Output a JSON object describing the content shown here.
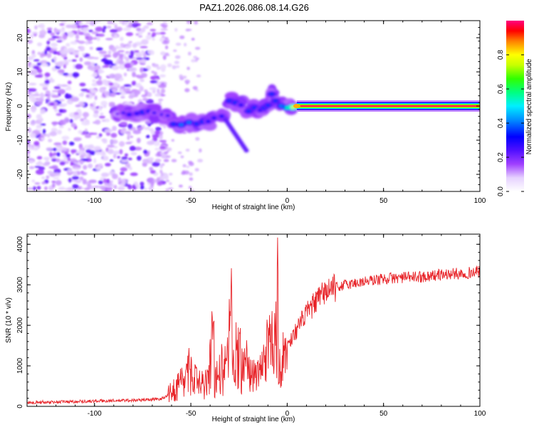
{
  "title": "PAZ1.2026.086.08.14.G26",
  "chart_data": [
    {
      "type": "heatmap",
      "name": "spectrogram",
      "xlabel": "Height of straight line (km)",
      "ylabel": "Frequency (Hz)",
      "xlim": [
        -135,
        100
      ],
      "ylim": [
        -25,
        25
      ],
      "xticks": [
        -100,
        -50,
        0,
        50,
        100
      ],
      "xtick_labels": [
        "-100",
        "-50",
        "0",
        "50",
        "100"
      ],
      "yticks": [
        -20,
        -10,
        0,
        10,
        20
      ],
      "ytick_labels": [
        "-20",
        "-10",
        "0",
        "10",
        "20"
      ],
      "colorbar": {
        "label": "Normalized spectral amplitude",
        "range": [
          0,
          1
        ],
        "ticks": [
          0.0,
          0.2,
          0.4,
          0.6,
          0.8
        ],
        "tick_labels": [
          "0.0",
          "0.2",
          "0.4",
          "0.6",
          "0.8"
        ]
      },
      "noise_region": {
        "x_from": -135,
        "x_to": -63,
        "freq_from": -25,
        "freq_to": 25,
        "amplitude": 0.1
      },
      "ridge": [
        {
          "x": -88,
          "f": -2.3,
          "a": 0.15
        },
        {
          "x": -85,
          "f": -2.0,
          "a": 0.2
        },
        {
          "x": -82,
          "f": -2.5,
          "a": 0.25
        },
        {
          "x": -78,
          "f": -2.2,
          "a": 0.25
        },
        {
          "x": -75,
          "f": -1.8,
          "a": 0.3
        },
        {
          "x": -72,
          "f": -1.5,
          "a": 0.25
        },
        {
          "x": -69,
          "f": -2.0,
          "a": 0.2
        },
        {
          "x": -65,
          "f": -2.5,
          "a": 0.2
        },
        {
          "x": -62,
          "f": -2.8,
          "a": 0.2
        },
        {
          "x": -59,
          "f": -5.3,
          "a": 0.3
        },
        {
          "x": -55,
          "f": -5.5,
          "a": 0.35
        },
        {
          "x": -51,
          "f": -4.8,
          "a": 0.35
        },
        {
          "x": -47,
          "f": -5.2,
          "a": 0.3
        },
        {
          "x": -44,
          "f": -4.6,
          "a": 0.3
        },
        {
          "x": -41,
          "f": -4.5,
          "a": 0.25
        },
        {
          "x": -38,
          "f": -3.5,
          "a": 0.25
        },
        {
          "x": -34,
          "f": -3.0,
          "a": 0.25
        },
        {
          "x": -30,
          "f": 1.5,
          "a": 0.3
        },
        {
          "x": -27,
          "f": 1.0,
          "a": 0.3
        },
        {
          "x": -24,
          "f": 0.3,
          "a": 0.25
        },
        {
          "x": -20,
          "f": -1.5,
          "a": 0.3
        },
        {
          "x": -17,
          "f": -0.5,
          "a": 0.3
        },
        {
          "x": -14,
          "f": -1.2,
          "a": 0.25
        },
        {
          "x": -12,
          "f": -0.5,
          "a": 0.3
        },
        {
          "x": -10,
          "f": 0.2,
          "a": 0.3
        },
        {
          "x": -8,
          "f": 3.5,
          "a": 0.3
        },
        {
          "x": -6,
          "f": 1.5,
          "a": 0.3
        },
        {
          "x": -3,
          "f": 0.0,
          "a": 0.35
        },
        {
          "x": 0,
          "f": -0.5,
          "a": 0.5
        },
        {
          "x": 3,
          "f": -0.3,
          "a": 0.7
        }
      ],
      "carrier": {
        "x_from": 5,
        "x_to": 100,
        "freq": 0,
        "amplitude": 1.0
      }
    },
    {
      "type": "line",
      "name": "snr",
      "xlabel": "Height of straight line (km)",
      "ylabel": "SNR (10 * v/v)",
      "xlim": [
        -135,
        100
      ],
      "ylim": [
        0,
        4250
      ],
      "xticks": [
        -100,
        -50,
        0,
        50,
        100
      ],
      "xtick_labels": [
        "-100",
        "-50",
        "0",
        "50",
        "100"
      ],
      "yticks": [
        0,
        1000,
        2000,
        3000,
        4000
      ],
      "ytick_labels": [
        "0",
        "1000",
        "2000",
        "3000",
        "4000"
      ],
      "color": "#e8252a",
      "x": [
        -135,
        -120,
        -100,
        -80,
        -70,
        -65,
        -60,
        -55,
        -50,
        -45,
        -40,
        -35,
        -30,
        -27,
        -25,
        -20,
        -15,
        -10,
        -7,
        -5,
        -3,
        0,
        5,
        10,
        20,
        30,
        40,
        50,
        60,
        70,
        80,
        90,
        100
      ],
      "y": [
        100,
        110,
        130,
        150,
        170,
        190,
        350,
        600,
        750,
        500,
        650,
        850,
        1050,
        1400,
        1250,
        800,
        750,
        1450,
        1750,
        900,
        1050,
        1500,
        1900,
        2300,
        2850,
        3000,
        3080,
        3150,
        3180,
        3200,
        3250,
        3280,
        3320
      ],
      "peaks": [
        {
          "x": -29,
          "y": 3550
        },
        {
          "x": -5,
          "y": 4250
        },
        {
          "x": -39,
          "y": 2550
        },
        {
          "x": -51,
          "y": 1500
        },
        {
          "x": -21,
          "y": 1700
        }
      ]
    }
  ]
}
